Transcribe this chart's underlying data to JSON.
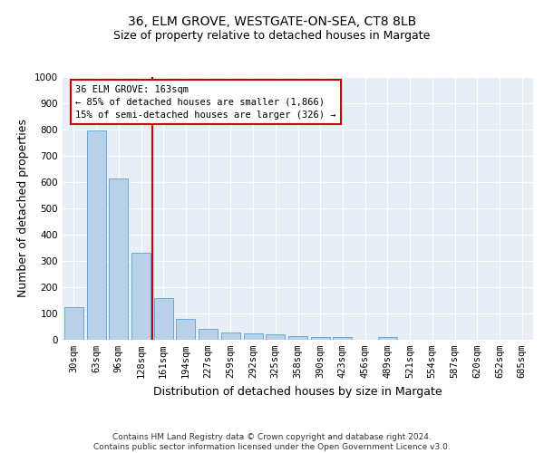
{
  "title": "36, ELM GROVE, WESTGATE-ON-SEA, CT8 8LB",
  "subtitle": "Size of property relative to detached houses in Margate",
  "xlabel": "Distribution of detached houses by size in Margate",
  "ylabel": "Number of detached properties",
  "categories": [
    "30sqm",
    "63sqm",
    "96sqm",
    "128sqm",
    "161sqm",
    "194sqm",
    "227sqm",
    "259sqm",
    "292sqm",
    "325sqm",
    "358sqm",
    "390sqm",
    "423sqm",
    "456sqm",
    "489sqm",
    "521sqm",
    "554sqm",
    "587sqm",
    "620sqm",
    "652sqm",
    "685sqm"
  ],
  "values": [
    125,
    795,
    615,
    330,
    160,
    80,
    40,
    27,
    25,
    20,
    15,
    10,
    10,
    0,
    10,
    0,
    0,
    0,
    0,
    0,
    0
  ],
  "bar_color": "#b8d0e8",
  "bar_edge_color": "#6aaad4",
  "vline_color": "#cc0000",
  "vline_index": 3.5,
  "annotation_text": "36 ELM GROVE: 163sqm\n← 85% of detached houses are smaller (1,866)\n15% of semi-detached houses are larger (326) →",
  "annotation_box_facecolor": "#ffffff",
  "annotation_box_edgecolor": "#cc0000",
  "ylim": [
    0,
    1000
  ],
  "yticks": [
    0,
    100,
    200,
    300,
    400,
    500,
    600,
    700,
    800,
    900,
    1000
  ],
  "plot_bg_color": "#e8eef5",
  "fig_bg_color": "#ffffff",
  "title_fontsize": 10,
  "subtitle_fontsize": 9,
  "xlabel_fontsize": 9,
  "ylabel_fontsize": 9,
  "tick_fontsize": 7.5,
  "annotation_fontsize": 7.5,
  "footer_fontsize": 6.5,
  "footer_text": "Contains HM Land Registry data © Crown copyright and database right 2024.\nContains public sector information licensed under the Open Government Licence v3.0."
}
